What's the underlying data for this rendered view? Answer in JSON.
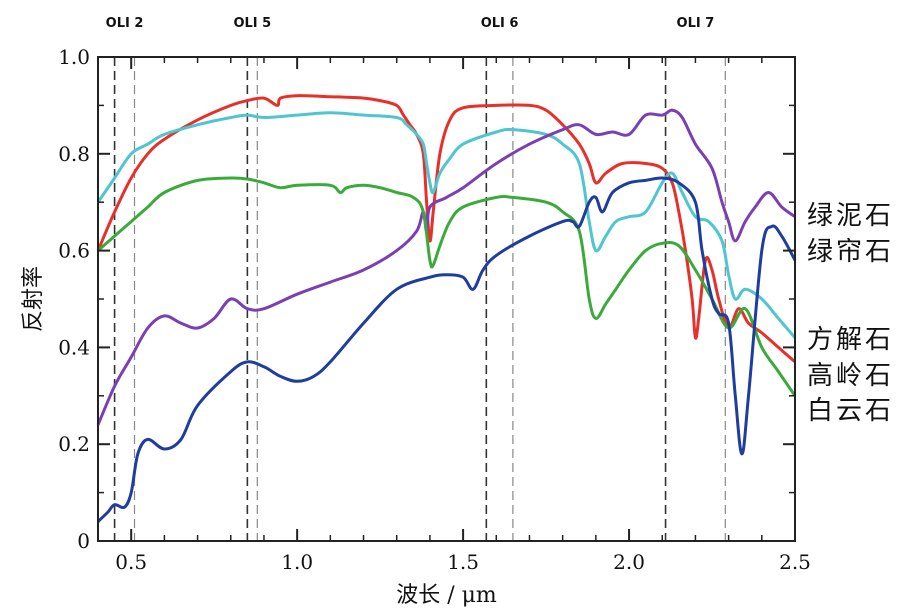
{
  "chart_data": {
    "type": "line",
    "title": "",
    "xlabel": "波长 / μm",
    "ylabel": "反射率",
    "xlim": [
      0.4,
      2.5
    ],
    "ylim": [
      0,
      1.0
    ],
    "xticks": [
      0.5,
      1.0,
      1.5,
      2.0,
      2.5
    ],
    "xtick_labels": [
      "0.5",
      "1.0",
      "1.5",
      "2.0",
      "2.5"
    ],
    "yticks": [
      0,
      0.2,
      0.4,
      0.6,
      0.8,
      1.0
    ],
    "ytick_labels": [
      "0",
      "0.2",
      "0.4",
      "0.6",
      "0.8",
      "1.0"
    ],
    "grid": false,
    "bands": [
      {
        "label": "OLI 2",
        "edges": [
          0.45,
          0.51
        ]
      },
      {
        "label": "OLI 5",
        "edges": [
          0.85,
          0.88
        ]
      },
      {
        "label": "OLI 6",
        "edges": [
          1.57,
          1.65
        ]
      },
      {
        "label": "OLI 7",
        "edges": [
          2.11,
          2.29
        ]
      }
    ],
    "legend_labels": [
      "绿泥石",
      "绿帘石",
      "方解石",
      "高岭石",
      "白云石"
    ],
    "series": [
      {
        "color": "#e8302a",
        "points": [
          [
            0.4,
            0.6
          ],
          [
            0.45,
            0.68
          ],
          [
            0.5,
            0.75
          ],
          [
            0.55,
            0.8
          ],
          [
            0.6,
            0.83
          ],
          [
            0.7,
            0.87
          ],
          [
            0.8,
            0.9
          ],
          [
            0.85,
            0.91
          ],
          [
            0.9,
            0.915
          ],
          [
            0.94,
            0.9
          ],
          [
            0.95,
            0.915
          ],
          [
            1.0,
            0.92
          ],
          [
            1.1,
            0.918
          ],
          [
            1.2,
            0.915
          ],
          [
            1.25,
            0.91
          ],
          [
            1.3,
            0.9
          ],
          [
            1.32,
            0.88
          ],
          [
            1.34,
            0.86
          ],
          [
            1.36,
            0.84
          ],
          [
            1.38,
            0.8
          ],
          [
            1.39,
            0.7
          ],
          [
            1.4,
            0.62
          ],
          [
            1.41,
            0.68
          ],
          [
            1.43,
            0.8
          ],
          [
            1.46,
            0.87
          ],
          [
            1.5,
            0.895
          ],
          [
            1.6,
            0.9
          ],
          [
            1.7,
            0.9
          ],
          [
            1.75,
            0.89
          ],
          [
            1.8,
            0.86
          ],
          [
            1.85,
            0.82
          ],
          [
            1.88,
            0.78
          ],
          [
            1.9,
            0.74
          ],
          [
            1.93,
            0.76
          ],
          [
            1.98,
            0.78
          ],
          [
            2.05,
            0.78
          ],
          [
            2.1,
            0.77
          ],
          [
            2.13,
            0.74
          ],
          [
            2.15,
            0.68
          ],
          [
            2.17,
            0.6
          ],
          [
            2.19,
            0.5
          ],
          [
            2.2,
            0.42
          ],
          [
            2.21,
            0.46
          ],
          [
            2.23,
            0.58
          ],
          [
            2.25,
            0.56
          ],
          [
            2.27,
            0.5
          ],
          [
            2.3,
            0.44
          ],
          [
            2.33,
            0.48
          ],
          [
            2.36,
            0.45
          ],
          [
            2.4,
            0.43
          ],
          [
            2.45,
            0.4
          ],
          [
            2.5,
            0.37
          ]
        ]
      },
      {
        "color": "#4fc5cf",
        "points": [
          [
            0.4,
            0.7
          ],
          [
            0.45,
            0.75
          ],
          [
            0.5,
            0.8
          ],
          [
            0.55,
            0.82
          ],
          [
            0.6,
            0.84
          ],
          [
            0.7,
            0.86
          ],
          [
            0.8,
            0.875
          ],
          [
            0.85,
            0.88
          ],
          [
            0.9,
            0.875
          ],
          [
            1.0,
            0.88
          ],
          [
            1.1,
            0.885
          ],
          [
            1.2,
            0.88
          ],
          [
            1.3,
            0.875
          ],
          [
            1.33,
            0.86
          ],
          [
            1.36,
            0.84
          ],
          [
            1.38,
            0.82
          ],
          [
            1.39,
            0.78
          ],
          [
            1.4,
            0.74
          ],
          [
            1.41,
            0.72
          ],
          [
            1.43,
            0.76
          ],
          [
            1.46,
            0.79
          ],
          [
            1.5,
            0.82
          ],
          [
            1.6,
            0.845
          ],
          [
            1.65,
            0.85
          ],
          [
            1.75,
            0.84
          ],
          [
            1.8,
            0.82
          ],
          [
            1.85,
            0.78
          ],
          [
            1.88,
            0.66
          ],
          [
            1.9,
            0.6
          ],
          [
            1.93,
            0.63
          ],
          [
            1.96,
            0.66
          ],
          [
            2.0,
            0.67
          ],
          [
            2.05,
            0.68
          ],
          [
            2.1,
            0.74
          ],
          [
            2.13,
            0.76
          ],
          [
            2.16,
            0.72
          ],
          [
            2.2,
            0.67
          ],
          [
            2.24,
            0.66
          ],
          [
            2.28,
            0.62
          ],
          [
            2.3,
            0.55
          ],
          [
            2.32,
            0.5
          ],
          [
            2.35,
            0.52
          ],
          [
            2.4,
            0.5
          ],
          [
            2.45,
            0.46
          ],
          [
            2.5,
            0.42
          ]
        ]
      },
      {
        "color": "#7b3fb4",
        "points": [
          [
            0.4,
            0.24
          ],
          [
            0.45,
            0.32
          ],
          [
            0.5,
            0.38
          ],
          [
            0.55,
            0.44
          ],
          [
            0.6,
            0.465
          ],
          [
            0.65,
            0.45
          ],
          [
            0.7,
            0.44
          ],
          [
            0.75,
            0.46
          ],
          [
            0.8,
            0.5
          ],
          [
            0.85,
            0.48
          ],
          [
            0.9,
            0.48
          ],
          [
            1.0,
            0.51
          ],
          [
            1.1,
            0.535
          ],
          [
            1.2,
            0.56
          ],
          [
            1.3,
            0.6
          ],
          [
            1.36,
            0.64
          ],
          [
            1.38,
            0.68
          ],
          [
            1.39,
            0.64
          ],
          [
            1.4,
            0.69
          ],
          [
            1.45,
            0.71
          ],
          [
            1.5,
            0.73
          ],
          [
            1.6,
            0.78
          ],
          [
            1.7,
            0.82
          ],
          [
            1.8,
            0.85
          ],
          [
            1.85,
            0.86
          ],
          [
            1.9,
            0.84
          ],
          [
            1.95,
            0.845
          ],
          [
            2.0,
            0.84
          ],
          [
            2.05,
            0.88
          ],
          [
            2.1,
            0.88
          ],
          [
            2.13,
            0.89
          ],
          [
            2.16,
            0.875
          ],
          [
            2.2,
            0.82
          ],
          [
            2.25,
            0.77
          ],
          [
            2.28,
            0.7
          ],
          [
            2.3,
            0.66
          ],
          [
            2.32,
            0.62
          ],
          [
            2.35,
            0.66
          ],
          [
            2.38,
            0.69
          ],
          [
            2.42,
            0.72
          ],
          [
            2.46,
            0.69
          ],
          [
            2.5,
            0.67
          ]
        ]
      },
      {
        "color": "#3aab3a",
        "points": [
          [
            0.4,
            0.6
          ],
          [
            0.45,
            0.63
          ],
          [
            0.5,
            0.66
          ],
          [
            0.55,
            0.69
          ],
          [
            0.6,
            0.72
          ],
          [
            0.7,
            0.745
          ],
          [
            0.8,
            0.75
          ],
          [
            0.85,
            0.748
          ],
          [
            0.9,
            0.74
          ],
          [
            0.95,
            0.73
          ],
          [
            1.0,
            0.735
          ],
          [
            1.1,
            0.735
          ],
          [
            1.13,
            0.72
          ],
          [
            1.15,
            0.73
          ],
          [
            1.2,
            0.735
          ],
          [
            1.25,
            0.73
          ],
          [
            1.3,
            0.72
          ],
          [
            1.35,
            0.71
          ],
          [
            1.38,
            0.68
          ],
          [
            1.4,
            0.58
          ],
          [
            1.41,
            0.57
          ],
          [
            1.43,
            0.61
          ],
          [
            1.46,
            0.66
          ],
          [
            1.5,
            0.69
          ],
          [
            1.6,
            0.71
          ],
          [
            1.65,
            0.71
          ],
          [
            1.75,
            0.7
          ],
          [
            1.8,
            0.68
          ],
          [
            1.85,
            0.64
          ],
          [
            1.88,
            0.5
          ],
          [
            1.9,
            0.46
          ],
          [
            1.93,
            0.49
          ],
          [
            1.96,
            0.52
          ],
          [
            2.0,
            0.56
          ],
          [
            2.05,
            0.6
          ],
          [
            2.1,
            0.615
          ],
          [
            2.15,
            0.61
          ],
          [
            2.2,
            0.56
          ],
          [
            2.25,
            0.5
          ],
          [
            2.3,
            0.44
          ],
          [
            2.35,
            0.48
          ],
          [
            2.4,
            0.4
          ],
          [
            2.45,
            0.35
          ],
          [
            2.5,
            0.3
          ]
        ]
      },
      {
        "color": "#1f3d9e",
        "points": [
          [
            0.4,
            0.04
          ],
          [
            0.43,
            0.06
          ],
          [
            0.45,
            0.075
          ],
          [
            0.48,
            0.07
          ],
          [
            0.5,
            0.1
          ],
          [
            0.52,
            0.18
          ],
          [
            0.55,
            0.21
          ],
          [
            0.6,
            0.19
          ],
          [
            0.65,
            0.21
          ],
          [
            0.7,
            0.28
          ],
          [
            0.8,
            0.35
          ],
          [
            0.85,
            0.37
          ],
          [
            0.9,
            0.36
          ],
          [
            0.95,
            0.34
          ],
          [
            1.0,
            0.33
          ],
          [
            1.05,
            0.34
          ],
          [
            1.1,
            0.37
          ],
          [
            1.2,
            0.45
          ],
          [
            1.3,
            0.52
          ],
          [
            1.4,
            0.545
          ],
          [
            1.45,
            0.55
          ],
          [
            1.5,
            0.545
          ],
          [
            1.53,
            0.52
          ],
          [
            1.56,
            0.56
          ],
          [
            1.6,
            0.59
          ],
          [
            1.7,
            0.63
          ],
          [
            1.8,
            0.66
          ],
          [
            1.83,
            0.66
          ],
          [
            1.85,
            0.65
          ],
          [
            1.88,
            0.7
          ],
          [
            1.9,
            0.71
          ],
          [
            1.92,
            0.68
          ],
          [
            1.95,
            0.72
          ],
          [
            2.0,
            0.74
          ],
          [
            2.05,
            0.745
          ],
          [
            2.1,
            0.75
          ],
          [
            2.15,
            0.74
          ],
          [
            2.2,
            0.7
          ],
          [
            2.22,
            0.6
          ],
          [
            2.25,
            0.5
          ],
          [
            2.27,
            0.47
          ],
          [
            2.3,
            0.45
          ],
          [
            2.32,
            0.3
          ],
          [
            2.34,
            0.18
          ],
          [
            2.36,
            0.3
          ],
          [
            2.4,
            0.6
          ],
          [
            2.43,
            0.65
          ],
          [
            2.46,
            0.63
          ],
          [
            2.5,
            0.58
          ]
        ]
      }
    ]
  }
}
